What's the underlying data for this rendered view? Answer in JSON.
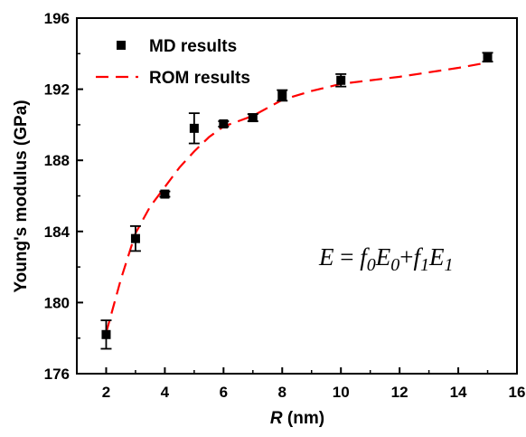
{
  "chart_data": {
    "type": "scatter",
    "xlabel_var": "R",
    "xlabel_unit": " (nm)",
    "ylabel": "Young's modulus (GPa)",
    "xlim": [
      1,
      16
    ],
    "ylim": [
      176,
      196
    ],
    "x_ticks": [
      "2",
      "4",
      "6",
      "8",
      "10",
      "12",
      "14",
      "16"
    ],
    "y_ticks": [
      "176",
      "180",
      "184",
      "188",
      "192",
      "196"
    ],
    "grid": false,
    "legend_position": "top-left",
    "series": [
      {
        "name": "MD results",
        "kind": "scatter",
        "marker": "square",
        "color": "#000000",
        "x": [
          2,
          3,
          4,
          5,
          6,
          7,
          8,
          10,
          15
        ],
        "y": [
          178.2,
          183.6,
          186.1,
          189.8,
          190.05,
          190.4,
          191.65,
          192.5,
          193.8
        ],
        "error": [
          0.8,
          0.7,
          0.15,
          0.85,
          0.15,
          0.2,
          0.3,
          0.35,
          0.25
        ]
      },
      {
        "name": "ROM results",
        "kind": "line",
        "style": "dashed",
        "color": "#ff0000",
        "x": [
          2,
          2.5,
          3,
          3.5,
          4,
          4.5,
          5,
          5.5,
          6,
          7,
          8,
          9,
          10,
          12,
          14,
          15
        ],
        "y": [
          178.3,
          181.3,
          183.9,
          185.4,
          186.5,
          187.6,
          188.5,
          189.3,
          189.9,
          190.5,
          191.4,
          191.9,
          192.3,
          192.7,
          193.2,
          193.5
        ]
      }
    ],
    "annotation": {
      "E": "E",
      "eq": " = ",
      "f0": "f",
      "f0_sub": "0",
      "E0": "E",
      "E0_sub": "0",
      "plus": "+",
      "f1": "f",
      "f1_sub": "1",
      "E1": "E",
      "E1_sub": "1"
    }
  }
}
